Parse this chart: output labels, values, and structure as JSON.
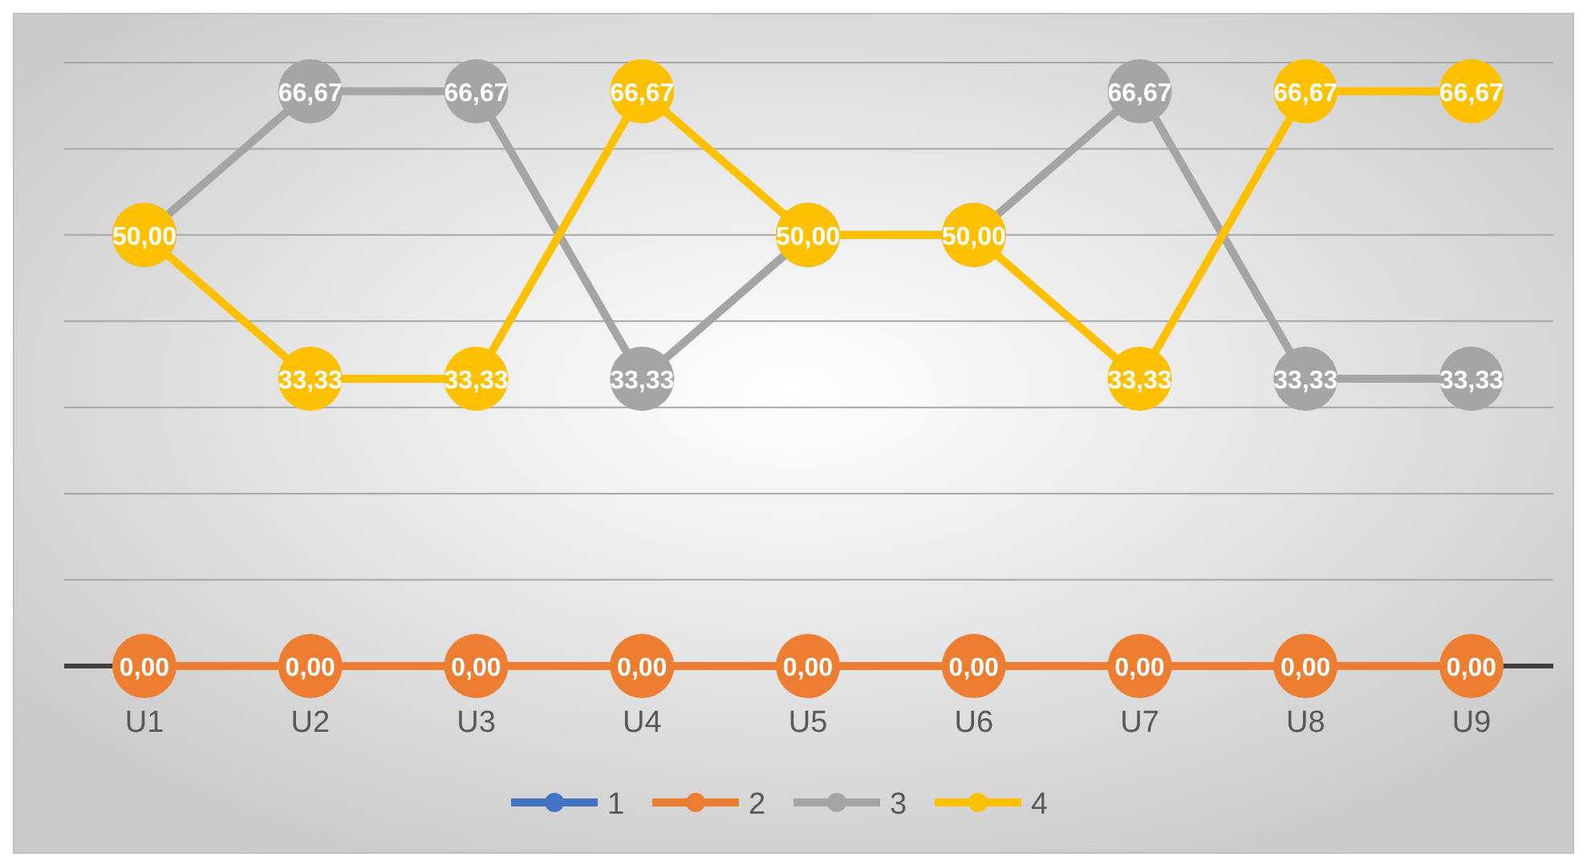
{
  "chart_data": {
    "type": "line",
    "categories": [
      "U1",
      "U2",
      "U3",
      "U4",
      "U5",
      "U6",
      "U7",
      "U8",
      "U9"
    ],
    "ylim": [
      0,
      70
    ],
    "yticks": [
      {
        "value": 0,
        "label": null
      },
      {
        "value": 10,
        "label": null
      },
      {
        "value": 20,
        "label": null
      },
      {
        "value": 30,
        "label": null
      },
      {
        "value": 40,
        "label": null
      },
      {
        "value": 50,
        "label": null
      },
      {
        "value": 60,
        "label": null
      },
      {
        "value": 70,
        "label": null
      }
    ],
    "tick_labels": "x",
    "grid": "y",
    "legend": "bottom",
    "marker": "circle",
    "line_style": "solid",
    "series": [
      {
        "name": "1",
        "color": "#4472c4",
        "values": [
          null,
          null,
          null,
          null,
          null,
          null,
          null,
          null,
          null
        ],
        "value_labels": [
          null,
          null,
          null,
          null,
          null,
          null,
          null,
          null,
          null
        ]
      },
      {
        "name": "2",
        "color": "#ed7d31",
        "values": [
          0,
          0,
          0,
          0,
          0,
          0,
          0,
          0,
          0
        ],
        "value_labels": [
          "0,00",
          "0,00",
          "0,00",
          "0,00",
          "0,00",
          "0,00",
          "0,00",
          "0,00",
          "0,00"
        ]
      },
      {
        "name": "3",
        "color": "#a5a5a5",
        "values": [
          50,
          66.67,
          66.67,
          33.33,
          50,
          50,
          66.67,
          33.33,
          33.33
        ],
        "value_labels": [
          null,
          "66,67",
          "66,67",
          "33,33",
          null,
          null,
          "66,67",
          "33,33",
          "33,33"
        ]
      },
      {
        "name": "4",
        "color": "#ffc000",
        "values": [
          50,
          33.33,
          33.33,
          66.67,
          50,
          50,
          33.33,
          66.67,
          66.67
        ],
        "value_labels": [
          "50,00",
          "33,33",
          "33,33",
          "66,67",
          "50,00",
          "50,00",
          "33,33",
          "66,67",
          "66,67"
        ]
      }
    ]
  }
}
